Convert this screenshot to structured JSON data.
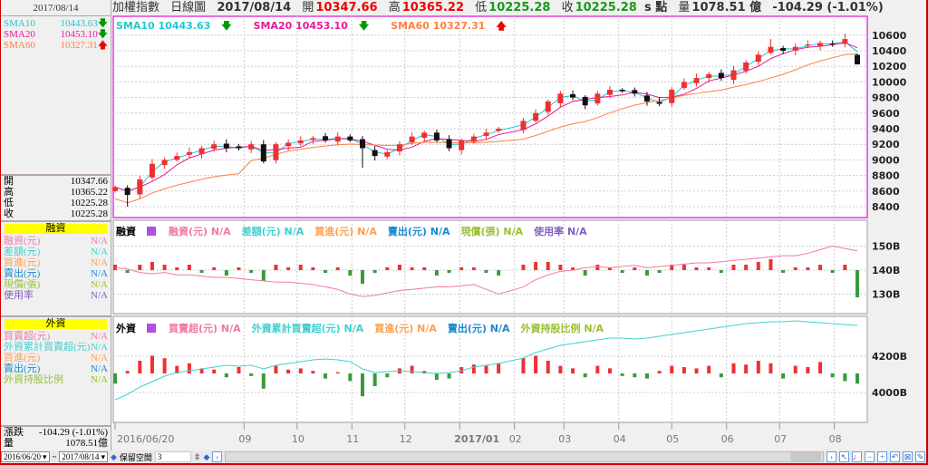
{
  "header": {
    "index_name": "加權指數",
    "chart_type": "日線圖",
    "date": "2017/08/14",
    "open_label": "開",
    "open": "10347.66",
    "high_label": "高",
    "high": "10365.22",
    "low_label": "低",
    "low": "10225.28",
    "close_label": "收",
    "close": "10225.28",
    "unit": "s 點",
    "volume_label": "量",
    "volume": "1078.51 億",
    "change": "-104.29 (-1.01%)"
  },
  "left_panel": {
    "date": "2017/08/14",
    "sma": [
      {
        "name": "SMA10",
        "value": "10443.63",
        "dir": "down",
        "color": "#22c8d0"
      },
      {
        "name": "SMA20",
        "value": "10453.10",
        "dir": "down",
        "color": "#e6199a"
      },
      {
        "name": "SMA60",
        "value": "10327.31",
        "dir": "up",
        "color": "#ff8040"
      }
    ],
    "ohlc": [
      {
        "label": "開",
        "value": "10347.66"
      },
      {
        "label": "高",
        "value": "10365.22"
      },
      {
        "label": "低",
        "value": "10225.28"
      },
      {
        "label": "收",
        "value": "10225.28"
      }
    ],
    "margin_title": "融資",
    "margin_items": [
      {
        "label": "融資(元)",
        "value": "N/A",
        "color": "#f07aa0"
      },
      {
        "label": "差額(元)",
        "value": "N/A",
        "color": "#40d0d0"
      },
      {
        "label": "買進(元)",
        "value": "N/A",
        "color": "#ffa050"
      },
      {
        "label": "賣出(元)",
        "value": "N/A",
        "color": "#1a8ad0"
      },
      {
        "label": "現償(張)",
        "value": "N/A",
        "color": "#99c030"
      },
      {
        "label": "使用率",
        "value": "N/A",
        "color": "#8060c0"
      }
    ],
    "foreign_title": "外資",
    "foreign_items": [
      {
        "label": "買賣超(元)",
        "value": "N/A",
        "color": "#f07aa0"
      },
      {
        "label": "外資累計買賣超(元)",
        "value": "N/A",
        "color": "#40d0d0"
      },
      {
        "label": "買進(元)",
        "value": "N/A",
        "color": "#ffa050"
      },
      {
        "label": "賣出(元)",
        "value": "N/A",
        "color": "#1a8ad0"
      },
      {
        "label": "外資持股比例",
        "value": "N/A",
        "color": "#99c030"
      }
    ],
    "change_label": "漲跌",
    "change": "-104.29 (-1.01%)",
    "volume_label": "量",
    "volume": "1078.51億"
  },
  "price_legend": [
    {
      "text": "SMA10 10443.63",
      "dir": "down",
      "color": "#22c8d0"
    },
    {
      "text": "SMA20 10453.10",
      "dir": "down",
      "color": "#e6199a"
    },
    {
      "text": "SMA60 10327.31",
      "dir": "up",
      "color": "#ff8040"
    }
  ],
  "margin_legend": {
    "title": "融資",
    "items": [
      {
        "text": "融資(元) N/A",
        "color": "#f07aa0"
      },
      {
        "text": "差額(元) N/A",
        "color": "#40d0d0"
      },
      {
        "text": "買進(元) N/A",
        "color": "#ffa050"
      },
      {
        "text": "賣出(元) N/A",
        "color": "#1a8ad0"
      },
      {
        "text": "現償(張) N/A",
        "color": "#99c030"
      },
      {
        "text": "使用率 N/A",
        "color": "#8060c0"
      }
    ]
  },
  "foreign_legend": {
    "title": "外資",
    "items": [
      {
        "text": "買賣超(元) N/A",
        "color": "#f07aa0"
      },
      {
        "text": "外資累計買賣超(元) N/A",
        "color": "#40d0d0"
      },
      {
        "text": "買進(元) N/A",
        "color": "#ffa050"
      },
      {
        "text": "賣出(元) N/A",
        "color": "#1a8ad0"
      },
      {
        "text": "外資持股比例 N/A",
        "color": "#99c030"
      }
    ]
  },
  "toolbar": {
    "start_date": "2016/06/20",
    "tilde": "~",
    "end_date": "2017/08/14",
    "reserve_label": "保留空間",
    "reserve_value": "3"
  },
  "chart_data": {
    "type": "candlestick",
    "price_axis": {
      "ticks": [
        8400,
        8600,
        8800,
        9000,
        9200,
        9400,
        9600,
        9800,
        10000,
        10200,
        10400,
        10600
      ],
      "range": [
        8350,
        10700
      ]
    },
    "x_labels": [
      {
        "date": "2016-06-20",
        "label": "2016/06/20"
      },
      {
        "date": "2016-09-01",
        "label": "09"
      },
      {
        "date": "2016-10-01",
        "label": "10"
      },
      {
        "date": "2016-11-01",
        "label": "11"
      },
      {
        "date": "2016-12-01",
        "label": "12"
      },
      {
        "date": "2017-01-01",
        "label": "2017/01",
        "bold": true
      },
      {
        "date": "2017-02-01",
        "label": "02"
      },
      {
        "date": "2017-03-01",
        "label": "03"
      },
      {
        "date": "2017-04-01",
        "label": "04"
      },
      {
        "date": "2017-05-01",
        "label": "05"
      },
      {
        "date": "2017-06-01",
        "label": "06"
      },
      {
        "date": "2017-07-01",
        "label": "07"
      },
      {
        "date": "2017-08-01",
        "label": "08"
      }
    ],
    "dates": [
      "2016-06-20",
      "2016-06-27",
      "2016-07-04",
      "2016-07-11",
      "2016-07-18",
      "2016-07-25",
      "2016-08-01",
      "2016-08-08",
      "2016-08-15",
      "2016-08-22",
      "2016-08-29",
      "2016-09-05",
      "2016-09-12",
      "2016-09-19",
      "2016-09-26",
      "2016-10-03",
      "2016-10-10",
      "2016-10-17",
      "2016-10-24",
      "2016-10-31",
      "2016-11-07",
      "2016-11-14",
      "2016-11-21",
      "2016-11-28",
      "2016-12-05",
      "2016-12-12",
      "2016-12-19",
      "2016-12-26",
      "2017-01-02",
      "2017-01-09",
      "2017-01-16",
      "2017-01-23",
      "2017-02-06",
      "2017-02-13",
      "2017-02-20",
      "2017-02-27",
      "2017-03-06",
      "2017-03-13",
      "2017-03-20",
      "2017-03-27",
      "2017-04-03",
      "2017-04-10",
      "2017-04-17",
      "2017-04-24",
      "2017-05-01",
      "2017-05-08",
      "2017-05-15",
      "2017-05-22",
      "2017-05-29",
      "2017-06-05",
      "2017-06-12",
      "2017-06-19",
      "2017-06-26",
      "2017-07-03",
      "2017-07-10",
      "2017-07-17",
      "2017-07-24",
      "2017-07-31",
      "2017-08-07",
      "2017-08-14"
    ],
    "close": [
      8650,
      8550,
      8750,
      8950,
      9000,
      9050,
      9100,
      9150,
      9200,
      9150,
      9150,
      9200,
      8980,
      9200,
      9220,
      9250,
      9280,
      9250,
      9300,
      9250,
      9150,
      9050,
      9100,
      9200,
      9300,
      9350,
      9250,
      9150,
      9250,
      9300,
      9350,
      9400,
      9500,
      9600,
      9750,
      9850,
      9800,
      9700,
      9850,
      9900,
      9880,
      9850,
      9750,
      9720,
      9900,
      10000,
      10050,
      10100,
      10050,
      10150,
      10250,
      10350,
      10450,
      10400,
      10450,
      10480,
      10500,
      10480,
      10550,
      10225
    ],
    "low_extremes": {
      "2016-06-27": 8400,
      "2016-11-07": 8900
    },
    "high_extremes": {
      "2017-06-26": 10550,
      "2017-08-07": 10620
    },
    "last_candle": {
      "open": 10347.66,
      "high": 10365.22,
      "low": 10225.28,
      "close": 10225.28
    },
    "margin": {
      "axis_ticks": [
        "150B",
        "140B",
        "130B"
      ],
      "tick_values": [
        150,
        140,
        130
      ],
      "balance": [
        141,
        140.5,
        139,
        138.5,
        139,
        138,
        138,
        137.5,
        137,
        137,
        136.5,
        136,
        135.5,
        135,
        135,
        134.5,
        134,
        133,
        132,
        130,
        129,
        129.5,
        130.5,
        131.5,
        132,
        132.5,
        133,
        133,
        133.5,
        134,
        132,
        130,
        133,
        136,
        138,
        139.5,
        140,
        141,
        141.5,
        141,
        141.5,
        142,
        141,
        141.5,
        142,
        142.5,
        143,
        143,
        143.5,
        144,
        144.5,
        145,
        145.5,
        146,
        146,
        147,
        148.5,
        150,
        149,
        148
      ],
      "change": [
        2,
        -1,
        2,
        3,
        2,
        1,
        2,
        -1,
        1,
        -2,
        1,
        -1,
        -4,
        2,
        1,
        2,
        1,
        -1,
        1,
        -2,
        -5,
        -1,
        1,
        2,
        1,
        1,
        -2,
        -1,
        1,
        1,
        -1,
        -2,
        2,
        3,
        3,
        2,
        1,
        -2,
        2,
        1,
        -1,
        1,
        -2,
        -1,
        2,
        2,
        1,
        1,
        -1,
        2,
        2,
        3,
        4,
        -1,
        1,
        1,
        2,
        -1,
        2,
        -10
      ]
    },
    "foreign": {
      "axis_ticks": [
        "4200B",
        "4000B"
      ],
      "tick_values": [
        4200,
        4000
      ],
      "cumulative": [
        3960,
        3990,
        4030,
        4060,
        4090,
        4110,
        4120,
        4130,
        4140,
        4150,
        4145,
        4150,
        4130,
        4150,
        4160,
        4170,
        4180,
        4185,
        4180,
        4170,
        4130,
        4110,
        4115,
        4120,
        4115,
        4110,
        4105,
        4110,
        4120,
        4140,
        4150,
        4160,
        4190,
        4220,
        4240,
        4260,
        4270,
        4280,
        4290,
        4300,
        4300,
        4295,
        4300,
        4310,
        4320,
        4330,
        4340,
        4350,
        4360,
        4370,
        4380,
        4385,
        4390,
        4390,
        4395,
        4390,
        4385,
        4380,
        4375,
        4370
      ],
      "net": [
        -8,
        2,
        10,
        14,
        12,
        6,
        8,
        4,
        3,
        -3,
        5,
        -2,
        -12,
        6,
        3,
        4,
        2,
        -4,
        1,
        -6,
        -18,
        -10,
        -3,
        4,
        6,
        2,
        -5,
        -4,
        5,
        7,
        6,
        8,
        12,
        14,
        10,
        6,
        4,
        -3,
        6,
        4,
        -2,
        -3,
        -4,
        2,
        6,
        5,
        4,
        6,
        -3,
        8,
        7,
        10,
        8,
        -4,
        6,
        5,
        9,
        -3,
        -6,
        -8
      ]
    }
  }
}
